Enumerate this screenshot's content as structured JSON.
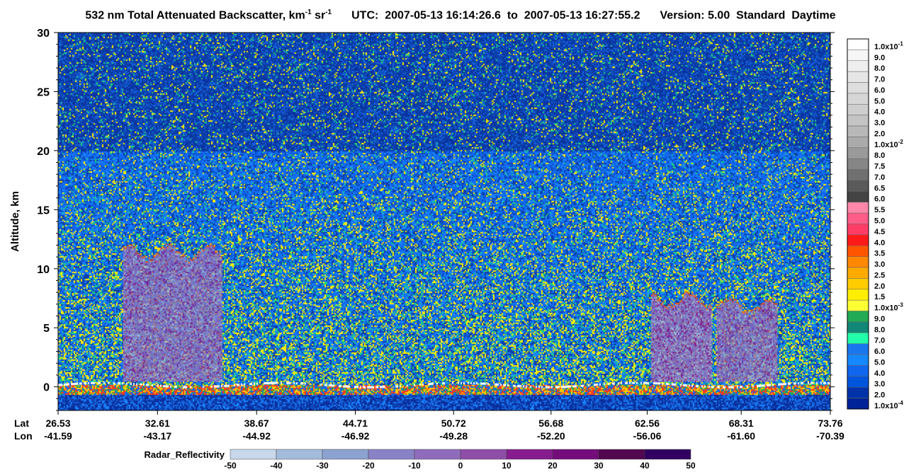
{
  "header": {
    "title_main": "532 nm Total Attenuated Backscatter, km",
    "title_exp1": "-1",
    "title_unit2": " sr",
    "title_exp2": "-1",
    "utc_label": "UTC:",
    "utc_start": "2007-05-13 16:14:26.6",
    "to_word": "to",
    "utc_end": "2007-05-13 16:27:55.2",
    "version": "Version: 5.00",
    "product": "Standard",
    "daytime": "Daytime"
  },
  "chart_data": {
    "type": "heatmap",
    "title": "532 nm Total Attenuated Backscatter, km-1 sr-1",
    "ylabel": "Altitude, km",
    "ylim": [
      -2,
      30
    ],
    "yticks": [
      0,
      5,
      10,
      15,
      20,
      25,
      30
    ],
    "xaxis": {
      "row_labels": [
        "Lat",
        "Lon"
      ],
      "lat": [
        "26.53",
        "32.61",
        "38.67",
        "44.71",
        "50.72",
        "56.68",
        "62.56",
        "68.31",
        "73.76"
      ],
      "lon": [
        "-41.59",
        "-43.17",
        "-44.92",
        "-46.92",
        "-49.28",
        "-52.20",
        "-56.06",
        "-61.60",
        "-70.39"
      ]
    },
    "colorbar": {
      "labels_top_to_bottom": [
        "1.0x10",
        "9.0",
        "8.0",
        "7.0",
        "6.0",
        "5.0",
        "4.0",
        "3.0",
        "2.0",
        "1.0x10",
        "8.0",
        "7.5",
        "7.0",
        "6.5",
        "6.0",
        "5.5",
        "5.0",
        "4.5",
        "4.0",
        "3.5",
        "3.0",
        "2.5",
        "2.0",
        "1.5",
        "1.0x10",
        "9.0",
        "8.0",
        "7.0",
        "6.0",
        "5.0",
        "4.0",
        "3.0",
        "2.0",
        "1.0x10"
      ],
      "exponents": [
        "-1",
        "-2",
        "-3",
        "-4"
      ],
      "colors_top_to_bottom": [
        "#ffffff",
        "#f6f6f6",
        "#eeeeee",
        "#e6e6e6",
        "#dedede",
        "#d6d6d6",
        "#cecece",
        "#c4c4c4",
        "#b8b8b8",
        "#aaaaaa",
        "#9a9a9a",
        "#868686",
        "#707070",
        "#5a5a5a",
        "#444444",
        "#ff88aa",
        "#ff5c88",
        "#ff3c66",
        "#ff1a1a",
        "#ff5500",
        "#ff8800",
        "#ffaa00",
        "#ffcc00",
        "#ffee00",
        "#ffff33",
        "#22aa55",
        "#118877",
        "#22ffaa",
        "#1b77ee",
        "#1588ff",
        "#1166ee",
        "#0055dd",
        "#0033aa",
        "#002299"
      ]
    },
    "radar_colorbar": {
      "label": "Radar_Reflectivity",
      "ticks": [
        "-50",
        "-40",
        "-30",
        "-20",
        "-10",
        "0",
        "10",
        "20",
        "30",
        "40",
        "50"
      ],
      "colors": [
        "#c8d8ea",
        "#a4bcdc",
        "#8ca2d0",
        "#8a82c6",
        "#8f6cbb",
        "#8e4ea8",
        "#861c8e",
        "#740c7c",
        "#520750",
        "#310060"
      ]
    },
    "features": [
      {
        "name": "Radar cloud",
        "lat_start": 30.5,
        "lat_end": 36.5,
        "alt_bottom": 0.5,
        "alt_top": 11.5
      },
      {
        "name": "Radar cloud",
        "lat_start": 62.8,
        "lat_end": 66.5,
        "alt_bottom": 0.5,
        "alt_top": 7.5
      },
      {
        "name": "Radar cloud",
        "lat_start": 66.8,
        "lat_end": 70.5,
        "alt_bottom": 0.5,
        "alt_top": 7.0
      },
      {
        "name": "Surface return",
        "alt": 0
      }
    ]
  }
}
